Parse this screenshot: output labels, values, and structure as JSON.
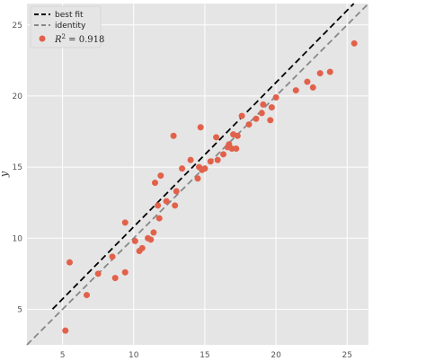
{
  "chart_data": {
    "type": "scatter",
    "title": "",
    "xlabel": "",
    "ylabel": "y",
    "xlim": [
      2.5,
      26.5
    ],
    "ylim": [
      2.5,
      26.5
    ],
    "x_ticks": [
      5,
      10,
      15,
      20,
      25
    ],
    "y_ticks": [
      5,
      10,
      15,
      20,
      25
    ],
    "grid": true,
    "legend_position": "top-left",
    "colors": {
      "background": "#e5e5e5",
      "grid": "#ffffff",
      "points": "#e2614a",
      "best_fit": "#000000",
      "identity": "#888888"
    },
    "legend": {
      "best_fit_label": "best fit",
      "identity_label": "identity",
      "points_label_prefix": "R",
      "points_label_sup": "2",
      "points_label_suffix": " = 0.918"
    },
    "best_fit": {
      "slope": 1.015,
      "intercept": 0.65,
      "x_range": [
        4.3,
        26.5
      ]
    },
    "identity": {
      "x_range": [
        2.5,
        26.5
      ]
    },
    "points": {
      "x": [
        5.2,
        5.5,
        6.7,
        7.5,
        8.5,
        8.7,
        9.4,
        9.4,
        10.1,
        10.4,
        10.6,
        11.0,
        11.2,
        11.4,
        11.5,
        11.7,
        11.8,
        11.9,
        12.3,
        12.8,
        12.9,
        13.0,
        13.4,
        14.0,
        14.5,
        14.6,
        14.7,
        14.8,
        15.0,
        15.4,
        15.8,
        15.9,
        16.3,
        16.6,
        16.7,
        16.9,
        17.0,
        17.2,
        17.3,
        17.6,
        18.1,
        18.6,
        19.0,
        19.1,
        19.6,
        19.7,
        20.0,
        21.4,
        22.2,
        22.6,
        23.1,
        23.8,
        25.5
      ],
      "y": [
        3.5,
        8.3,
        6.0,
        7.5,
        8.7,
        7.2,
        11.1,
        7.6,
        9.8,
        9.1,
        9.3,
        10.0,
        9.9,
        10.4,
        13.9,
        12.3,
        11.4,
        14.4,
        12.6,
        17.2,
        12.3,
        13.3,
        14.9,
        15.5,
        14.2,
        15.0,
        17.8,
        14.8,
        14.9,
        15.4,
        17.1,
        15.5,
        15.9,
        16.4,
        16.6,
        16.3,
        17.3,
        16.3,
        17.2,
        18.6,
        18.0,
        18.4,
        18.8,
        19.4,
        18.3,
        19.2,
        19.9,
        20.4,
        21.0,
        20.6,
        21.6,
        21.7,
        23.7
      ]
    }
  }
}
